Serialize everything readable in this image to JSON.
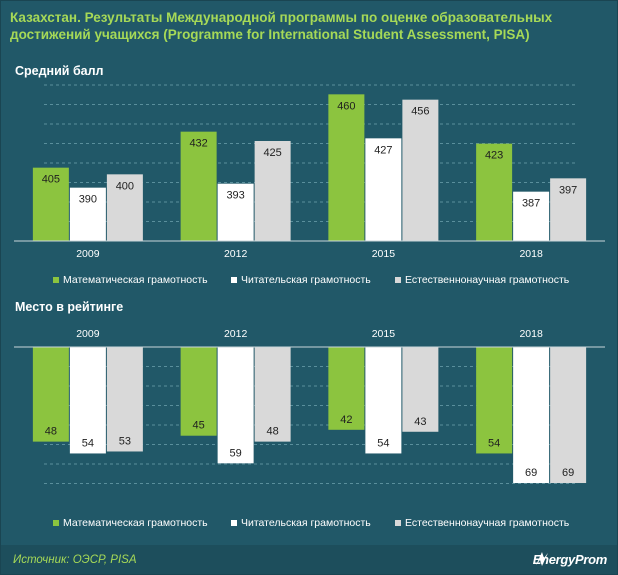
{
  "title": "Казахстан. Результаты Международной программы по оценке образовательных достижений учащихся (Programme for International Student Assessment, PISA)",
  "source": "Источник: ОЭСР, PISA",
  "logo": "EnergyProm",
  "colors": {
    "background": "#215868",
    "title": "#a6d957",
    "math": "#8cc43f",
    "reading": "#ffffff",
    "science": "#d9d9d9"
  },
  "chart_data": [
    {
      "type": "bar",
      "title": "Средний балл",
      "categories": [
        "2009",
        "2012",
        "2015",
        "2018"
      ],
      "series": [
        {
          "name": "Математическая грамотность",
          "values": [
            405,
            432,
            460,
            423
          ]
        },
        {
          "name": "Читательская грамотность",
          "values": [
            390,
            393,
            427,
            387
          ]
        },
        {
          "name": "Естественнонаучная грамотность",
          "values": [
            400,
            425,
            456,
            397
          ]
        }
      ],
      "ylim": [
        350,
        470
      ],
      "grid": true,
      "legend_position": "bottom"
    },
    {
      "type": "bar",
      "title": "Место в рейтинге",
      "categories": [
        "2009",
        "2012",
        "2015",
        "2018"
      ],
      "series": [
        {
          "name": "Математическая грамотность",
          "values": [
            48,
            45,
            42,
            54
          ]
        },
        {
          "name": "Читательская грамотность",
          "values": [
            54,
            59,
            54,
            69
          ]
        },
        {
          "name": "Естественнонаучная грамотность",
          "values": [
            53,
            48,
            43,
            69
          ]
        }
      ],
      "ylim": [
        0,
        70
      ],
      "axis_reversed": true,
      "x_axis_position": "top",
      "grid": true,
      "legend_position": "bottom"
    }
  ]
}
